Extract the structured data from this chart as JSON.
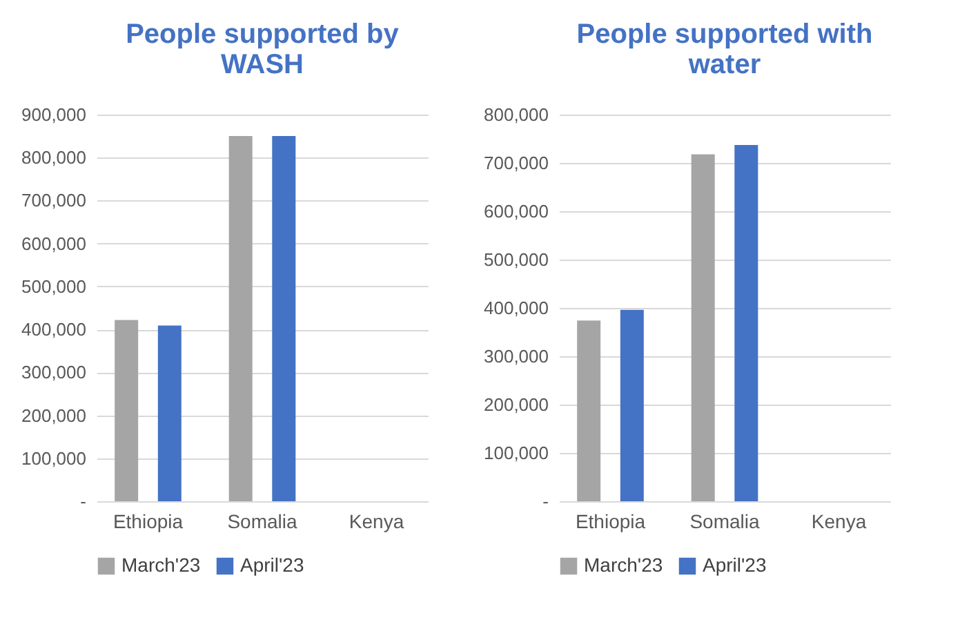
{
  "chart_data": [
    {
      "type": "bar",
      "title": "People supported by WASH",
      "categories": [
        "Ethiopia",
        "Somalia",
        "Kenya"
      ],
      "series": [
        {
          "name": "March'23",
          "color": "#a5a5a5",
          "values": [
            422000,
            850000,
            0
          ]
        },
        {
          "name": "April'23",
          "color": "#4472c4",
          "values": [
            409000,
            850000,
            0
          ]
        }
      ],
      "ylim": [
        0,
        900000
      ],
      "yticks": [
        {
          "value": 0,
          "label": "-"
        },
        {
          "value": 100000,
          "label": "100,000"
        },
        {
          "value": 200000,
          "label": "200,000"
        },
        {
          "value": 300000,
          "label": "300,000"
        },
        {
          "value": 400000,
          "label": "400,000"
        },
        {
          "value": 500000,
          "label": "500,000"
        },
        {
          "value": 600000,
          "label": "600,000"
        },
        {
          "value": 700000,
          "label": "700,000"
        },
        {
          "value": 800000,
          "label": "800,000"
        },
        {
          "value": 900000,
          "label": "900,000"
        }
      ],
      "grid": "y",
      "legend": "bottom"
    },
    {
      "type": "bar",
      "title": "People supported with water",
      "categories": [
        "Ethiopia",
        "Somalia",
        "Kenya"
      ],
      "series": [
        {
          "name": "March'23",
          "color": "#a5a5a5",
          "values": [
            374000,
            718000,
            0
          ]
        },
        {
          "name": "April'23",
          "color": "#4472c4",
          "values": [
            396000,
            737000,
            0
          ]
        }
      ],
      "ylim": [
        0,
        800000
      ],
      "yticks": [
        {
          "value": 0,
          "label": "-"
        },
        {
          "value": 100000,
          "label": "100,000"
        },
        {
          "value": 200000,
          "label": "200,000"
        },
        {
          "value": 300000,
          "label": "300,000"
        },
        {
          "value": 400000,
          "label": "400,000"
        },
        {
          "value": 500000,
          "label": "500,000"
        },
        {
          "value": 600000,
          "label": "600,000"
        },
        {
          "value": 700000,
          "label": "700,000"
        },
        {
          "value": 800000,
          "label": "800,000"
        }
      ],
      "grid": "y",
      "legend": "bottom"
    }
  ]
}
